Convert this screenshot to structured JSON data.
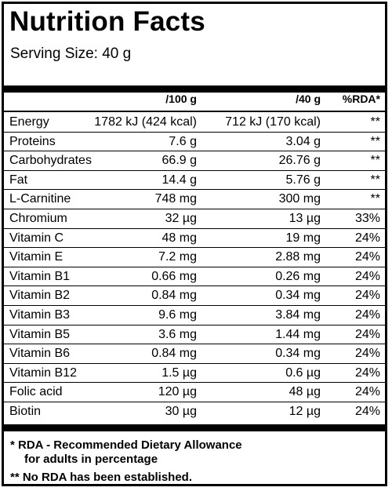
{
  "title": "Nutrition Facts",
  "serving_size": "Serving Size: 40 g",
  "columns": {
    "per100": "/100 g",
    "per40": "/40 g",
    "rda": "%RDA*"
  },
  "rows": [
    {
      "name": "Energy",
      "per100": "1782 kJ (424 kcal)",
      "per40": "712 kJ (170 kcal)",
      "rda": "**"
    },
    {
      "name": "Proteins",
      "per100": "7.6 g",
      "per40": "3.04 g",
      "rda": "**"
    },
    {
      "name": "Carbohydrates",
      "per100": "66.9 g",
      "per40": "26.76 g",
      "rda": "**"
    },
    {
      "name": "Fat",
      "per100": "14.4 g",
      "per40": "5.76 g",
      "rda": "**"
    },
    {
      "name": "L-Carnitine",
      "per100": "748 mg",
      "per40": "300 mg",
      "rda": "**"
    },
    {
      "name": "Chromium",
      "per100": "32 µg",
      "per40": "13 µg",
      "rda": "33%"
    },
    {
      "name": "Vitamin C",
      "per100": "48 mg",
      "per40": "19 mg",
      "rda": "24%"
    },
    {
      "name": "Vitamin E",
      "per100": "7.2 mg",
      "per40": "2.88 mg",
      "rda": "24%"
    },
    {
      "name": "Vitamin B1",
      "per100": "0.66 mg",
      "per40": "0.26 mg",
      "rda": "24%"
    },
    {
      "name": "Vitamin B2",
      "per100": "0.84 mg",
      "per40": "0.34 mg",
      "rda": "24%"
    },
    {
      "name": "Vitamin B3",
      "per100": "9.6 mg",
      "per40": "3.84 mg",
      "rda": "24%"
    },
    {
      "name": "Vitamin B5",
      "per100": "3.6 mg",
      "per40": "1.44 mg",
      "rda": "24%"
    },
    {
      "name": "Vitamin B6",
      "per100": "0.84 mg",
      "per40": "0.34 mg",
      "rda": "24%"
    },
    {
      "name": "Vitamin B12",
      "per100": "1.5 µg",
      "per40": "0.6 µg",
      "rda": "24%"
    },
    {
      "name": "Folic acid",
      "per100": "120 µg",
      "per40": "48 µg",
      "rda": "24%"
    },
    {
      "name": "Biotin",
      "per100": "30 µg",
      "per40": "12 µg",
      "rda": "24%"
    }
  ],
  "footnotes": {
    "rda_line1": "* RDA - Recommended Dietary Allowance",
    "rda_line2": "for adults in percentage",
    "no_rda": "** No RDA has been established."
  }
}
